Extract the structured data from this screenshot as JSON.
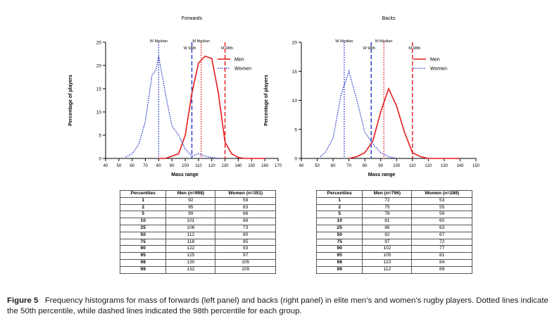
{
  "chart_data": [
    {
      "type": "line",
      "title": "Forwards",
      "xlabel": "Mass range",
      "ylabel": "Percentage of players",
      "xlim": [
        40,
        170
      ],
      "ylim": [
        0,
        25
      ],
      "xticks": [
        40,
        50,
        60,
        70,
        80,
        90,
        100,
        110,
        120,
        130,
        140,
        150,
        160,
        170
      ],
      "yticks": [
        0,
        5,
        10,
        15,
        20,
        25
      ],
      "legend_position": "right",
      "series": [
        {
          "name": "Men",
          "style": "solid",
          "color": "#e41a1c",
          "x": [
            80,
            85,
            90,
            95,
            100,
            105,
            110,
            115,
            120,
            125,
            130,
            135,
            140,
            145,
            150,
            155,
            160
          ],
          "y": [
            0,
            0,
            0.5,
            1,
            5,
            14,
            20.5,
            22,
            21.5,
            14,
            3.5,
            1,
            0.2,
            0,
            0,
            0,
            0
          ]
        },
        {
          "name": "Women",
          "style": "dotted",
          "color": "#2233cc",
          "x": [
            55,
            60,
            65,
            70,
            72,
            75,
            78,
            80,
            85,
            90,
            95,
            100,
            105,
            110,
            115,
            120,
            125
          ],
          "y": [
            0.3,
            1,
            3,
            8,
            12,
            18,
            19,
            22,
            14,
            7,
            5,
            2,
            0.5,
            1,
            0.5,
            0.2,
            0
          ]
        }
      ],
      "reference_lines": [
        {
          "label": "W Median",
          "x": 80,
          "style": "dotted",
          "color": "#2233cc"
        },
        {
          "label": "M Median",
          "x": 112,
          "style": "dotted",
          "color": "#e41a1c"
        },
        {
          "label": "W 98th",
          "x": 105,
          "style": "dashed",
          "color": "#2233cc"
        },
        {
          "label": "M 98th",
          "x": 130,
          "style": "dashed",
          "color": "#e41a1c"
        }
      ]
    },
    {
      "type": "line",
      "title": "Backs",
      "xlabel": "Mass range",
      "ylabel": "Percentage of players",
      "xlim": [
        40,
        150
      ],
      "ylim": [
        0,
        20
      ],
      "xticks": [
        40,
        50,
        60,
        70,
        80,
        90,
        100,
        110,
        120,
        130,
        140,
        150
      ],
      "yticks": [
        0,
        5,
        10,
        15,
        20
      ],
      "legend_position": "right",
      "series": [
        {
          "name": "Men",
          "style": "solid",
          "color": "#e41a1c",
          "x": [
            70,
            75,
            80,
            85,
            90,
            95,
            100,
            105,
            110,
            115,
            120,
            125,
            130,
            135,
            140
          ],
          "y": [
            0,
            0.3,
            1,
            3,
            8,
            12,
            9,
            4.5,
            1,
            0.3,
            0,
            0,
            0,
            0,
            0
          ]
        },
        {
          "name": "Women",
          "style": "dotted",
          "color": "#2233cc",
          "x": [
            52,
            55,
            60,
            65,
            70,
            75,
            80,
            85,
            90,
            95,
            100
          ],
          "y": [
            0.3,
            1,
            3.5,
            11,
            15,
            10,
            4.5,
            2.5,
            1,
            0.3,
            0
          ]
        }
      ],
      "reference_lines": [
        {
          "label": "W Median",
          "x": 67,
          "style": "dotted",
          "color": "#2233cc"
        },
        {
          "label": "M Median",
          "x": 92,
          "style": "dotted",
          "color": "#e41a1c"
        },
        {
          "label": "W 98th",
          "x": 84,
          "style": "dashed",
          "color": "#2233cc"
        },
        {
          "label": "M 98th",
          "x": 110,
          "style": "dashed",
          "color": "#e41a1c"
        }
      ]
    }
  ],
  "tables": {
    "forwards": {
      "headers": [
        "Percentiles",
        "Men (n=998)",
        "Women (n=351)"
      ],
      "rows": [
        [
          "1",
          "92",
          "59"
        ],
        [
          "2",
          "95",
          "63"
        ],
        [
          "5",
          "99",
          "66"
        ],
        [
          "10",
          "101",
          "68"
        ],
        [
          "25",
          "106",
          "73"
        ],
        [
          "50",
          "112",
          "80"
        ],
        [
          "75",
          "118",
          "85"
        ],
        [
          "90",
          "122",
          "93"
        ],
        [
          "95",
          "125",
          "97"
        ],
        [
          "98",
          "130",
          "105"
        ],
        [
          "99",
          "132",
          "109"
        ]
      ]
    },
    "backs": {
      "headers": [
        "Percentiles",
        "Men (n=796)",
        "Women (n=289)"
      ],
      "rows": [
        [
          "1",
          "72",
          "53"
        ],
        [
          "2",
          "75",
          "55"
        ],
        [
          "5",
          "78",
          "56"
        ],
        [
          "10",
          "81",
          "60"
        ],
        [
          "25",
          "86",
          "63"
        ],
        [
          "50",
          "92",
          "67"
        ],
        [
          "75",
          "97",
          "72"
        ],
        [
          "90",
          "102",
          "77"
        ],
        [
          "95",
          "105",
          "81"
        ],
        [
          "98",
          "110",
          "84"
        ],
        [
          "99",
          "112",
          "89"
        ]
      ]
    }
  },
  "caption": {
    "label": "Figure 5",
    "text": "Frequency histograms for mass of forwards (left panel) and backs (right panel) in elite men’s and women’s rugby players. Dotted lines indicate the 50th percentile, while dashed lines indicated the 98th percentile for each group."
  }
}
